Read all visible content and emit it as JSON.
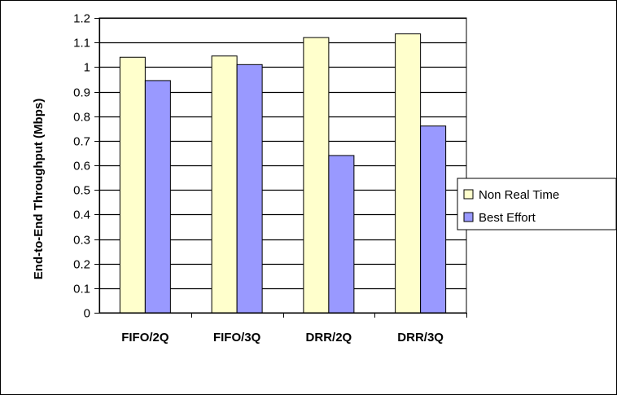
{
  "chart_data": {
    "type": "bar",
    "categories": [
      "FIFO/2Q",
      "FIFO/3Q",
      "DRR/2Q",
      "DRR/3Q"
    ],
    "series": [
      {
        "name": "Non Real Time",
        "values": [
          1.04,
          1.045,
          1.12,
          1.135
        ],
        "color": "#FFFFCC"
      },
      {
        "name": "Best Effort",
        "values": [
          0.945,
          1.01,
          0.64,
          0.76
        ],
        "color": "#9999FF"
      }
    ],
    "title": "",
    "xlabel": "",
    "ylabel": "End-to-End Throughput (Mbps)",
    "ylim": [
      0,
      1.2
    ],
    "yticks": [
      0,
      0.1,
      0.2,
      0.3,
      0.4,
      0.5,
      0.6,
      0.7,
      0.8,
      0.9,
      1,
      1.1,
      1.2
    ],
    "grid": true,
    "legend_position": "right"
  }
}
